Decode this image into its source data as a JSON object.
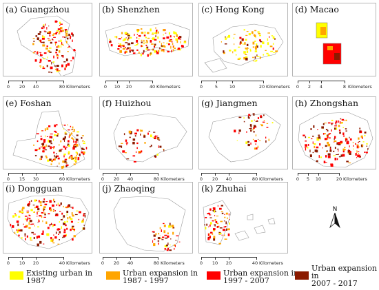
{
  "panels": [
    {
      "label": "(a) Guangzhou",
      "scale": [
        "0",
        "20",
        "40",
        "80"
      ],
      "unit": "Kilometers"
    },
    {
      "label": "(b) Shenzhen",
      "scale": [
        "0",
        "10",
        "20",
        "40"
      ],
      "unit": "Kilometers"
    },
    {
      "label": "(c) Hong Kong",
      "scale": [
        "0",
        "5",
        "10",
        "20"
      ],
      "unit": "Kilometers"
    },
    {
      "label": "(d) Macao",
      "scale": [
        "0",
        "2",
        "4",
        "8"
      ],
      "unit": "Kilometers"
    },
    {
      "label": "(e) Foshan",
      "scale": [
        "0",
        "15",
        "30",
        "60"
      ],
      "unit": "Kilometers"
    },
    {
      "label": "(f) Huizhou",
      "scale": [
        "0",
        "20",
        "40",
        "80"
      ],
      "unit": "Kilometers"
    },
    {
      "label": "(g) Jiangmen",
      "scale": [
        "0",
        "20",
        "40",
        "80"
      ],
      "unit": "Kilometers"
    },
    {
      "label": "(h) Zhongshan",
      "scale": [
        "0",
        "5",
        "10",
        "20"
      ],
      "unit": "Kilometers"
    },
    {
      "label": "(i) Dongguan",
      "scale": [
        "0",
        "10",
        "20",
        "40"
      ],
      "unit": "Kilometers"
    },
    {
      "label": "(j) Zhaoqing",
      "scale": [
        "0",
        "20",
        "40",
        "80"
      ],
      "unit": "Kilometers"
    },
    {
      "label": "(k) Zhuhai",
      "scale": [
        "0",
        "10",
        "20",
        "40"
      ],
      "unit": "Kilometers"
    }
  ],
  "legend": [
    {
      "line1": "Existing urban in",
      "line2": "1987",
      "color": "#ffff00"
    },
    {
      "line1": "Urban expansion in",
      "line2": "1987 - 1997",
      "color": "#ffa500"
    },
    {
      "line1": "Urban expansion in",
      "line2": "1997 - 2007",
      "color": "#ff0000"
    },
    {
      "line1": "Urban expansion in",
      "line2": "2007 - 2017",
      "color": "#8b1a00"
    }
  ],
  "north_arrow": {
    "letter": "N"
  }
}
